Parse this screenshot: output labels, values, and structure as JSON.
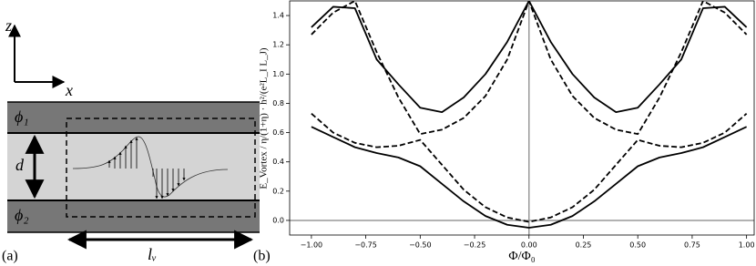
{
  "panel_a": {
    "label": "(a)",
    "axis_z": "z",
    "axis_x": "x",
    "phi_1": "ϕ₁",
    "phi_2": "ϕ₂",
    "d": "d",
    "l_v": "lᵥ"
  },
  "chart_data": {
    "type": "line",
    "panel_label": "(b)",
    "x_label": "Φ/Φ₀",
    "y_label": "E_Vortex / η/(1+η) · h²/(e²L_I L_J)",
    "x": [
      -1,
      -0.9,
      -0.8,
      -0.7,
      -0.6,
      -0.5,
      -0.4,
      -0.3,
      -0.2,
      -0.1,
      0,
      0.1,
      0.2,
      0.3,
      0.4,
      0.5,
      0.6,
      0.7,
      0.8,
      0.9,
      1
    ],
    "series": [
      {
        "color": "#000000",
        "dashed": false,
        "values": [
          0.64,
          0.57,
          0.5,
          0.46,
          0.43,
          0.37,
          0.25,
          0.13,
          0.03,
          -0.03,
          -0.05,
          -0.03,
          0.03,
          0.13,
          0.25,
          0.37,
          0.43,
          0.46,
          0.5,
          0.57,
          0.64
        ]
      },
      {
        "color": "#000000",
        "dashed": false,
        "values": [
          1.32,
          1.46,
          1.45,
          1.1,
          0.93,
          0.77,
          0.74,
          0.84,
          1.0,
          1.22,
          1.5,
          1.22,
          1.0,
          0.84,
          0.74,
          0.77,
          0.93,
          1.1,
          1.45,
          1.46,
          1.32
        ]
      },
      {
        "color": "#000000",
        "dashed": true,
        "values": [
          0.73,
          0.6,
          0.53,
          0.5,
          0.51,
          0.55,
          0.38,
          0.21,
          0.09,
          0.02,
          -0.01,
          0.02,
          0.09,
          0.21,
          0.38,
          0.55,
          0.51,
          0.5,
          0.53,
          0.6,
          0.73
        ]
      },
      {
        "color": "#000000",
        "dashed": true,
        "values": [
          1.27,
          1.42,
          1.5,
          1.15,
          0.84,
          0.59,
          0.62,
          0.7,
          0.85,
          1.1,
          1.5,
          1.1,
          0.85,
          0.7,
          0.62,
          0.59,
          0.84,
          1.15,
          1.5,
          1.42,
          1.27
        ]
      }
    ],
    "xlim": [
      -1.1,
      1.035
    ],
    "ylim": [
      -0.1,
      1.5
    ],
    "xticks": [
      {
        "value": -1,
        "label": "−1.00"
      },
      {
        "value": -0.75,
        "label": "−0.75"
      },
      {
        "value": -0.5,
        "label": "−0.50"
      },
      {
        "value": -0.25,
        "label": "−0.25"
      },
      {
        "value": 0,
        "label": "0.00"
      },
      {
        "value": 0.25,
        "label": "0.25"
      },
      {
        "value": 0.5,
        "label": "0.50"
      },
      {
        "value": 0.75,
        "label": "0.75"
      },
      {
        "value": 1,
        "label": "1.00"
      }
    ],
    "yticks": [
      {
        "value": 0,
        "label": "0.0"
      },
      {
        "value": 0.2,
        "label": "0.2"
      },
      {
        "value": 0.4,
        "label": "0.4"
      },
      {
        "value": 0.6,
        "label": "0.6"
      },
      {
        "value": 0.8,
        "label": "0.8"
      },
      {
        "value": 1,
        "label": "1.0"
      },
      {
        "value": 1.2,
        "label": "1.2"
      },
      {
        "value": 1.4,
        "label": "1.4"
      }
    ],
    "zero_lines": true
  }
}
